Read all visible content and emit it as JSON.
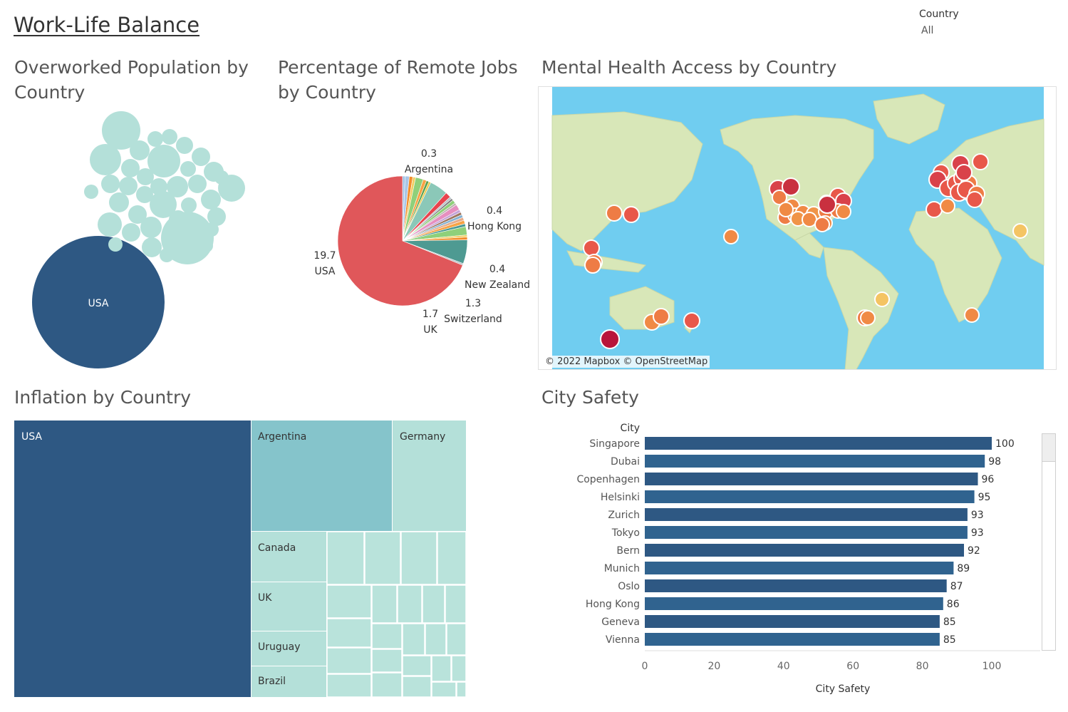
{
  "dashboard": {
    "title": "Work-Life Balance",
    "filter": {
      "label": "Country",
      "value": "All"
    }
  },
  "colors": {
    "dark_blue": "#2e5883",
    "teal_light": "#b4e0d9",
    "teal_mid": "#85c4cb",
    "ocean": "#70cdf0",
    "land": "#d8e7b8"
  },
  "chart_data": [
    {
      "id": "overworked",
      "type": "bubble",
      "title": "Overworked Population by Country",
      "labeled": [
        {
          "label": "USA",
          "size_rank": 1
        }
      ],
      "unlabeled_bubble_count": 39
    },
    {
      "id": "remote",
      "type": "pie",
      "title": "Percentage of Remote Jobs by Country",
      "slices": [
        {
          "label": "USA",
          "value": 19.7,
          "color": "#e0575a"
        },
        {
          "label": "UK",
          "value": 1.7,
          "color": "#4e9a92"
        },
        {
          "label": "Switzerland",
          "value": 1.3,
          "color": "#8bc8b8"
        },
        {
          "label": "New Zealand",
          "value": 0.4,
          "color": "#e68fc0"
        },
        {
          "label": "Hong Kong",
          "value": 0.4,
          "color": "#e8444e"
        },
        {
          "label": "Argentina",
          "value": 0.3,
          "color": "#a9c6e8"
        }
      ],
      "other_slice_count": 26
    },
    {
      "id": "mental",
      "type": "map",
      "title": "Mental Health Access by Country",
      "attribution": "© 2022 Mapbox © OpenStreetMap"
    },
    {
      "id": "inflation",
      "type": "treemap",
      "title": "Inflation by Country",
      "labeled": [
        "USA",
        "Argentina",
        "Germany",
        "Canada",
        "UK",
        "Uruguay",
        "Brazil"
      ]
    },
    {
      "id": "safety",
      "type": "bar",
      "title": "City Safety",
      "ylabel": "City",
      "xlabel": "City Safety",
      "xlim": [
        0,
        115
      ],
      "xticks": [
        0,
        20,
        40,
        60,
        80,
        100
      ],
      "categories": [
        "Singapore",
        "Dubai",
        "Copenhagen",
        "Helsinki",
        "Zurich",
        "Tokyo",
        "Bern",
        "Munich",
        "Oslo",
        "Hong Kong",
        "Geneva",
        "Vienna"
      ],
      "values": [
        100,
        98,
        96,
        95,
        93,
        93,
        92,
        89,
        87,
        86,
        85,
        85
      ]
    }
  ]
}
